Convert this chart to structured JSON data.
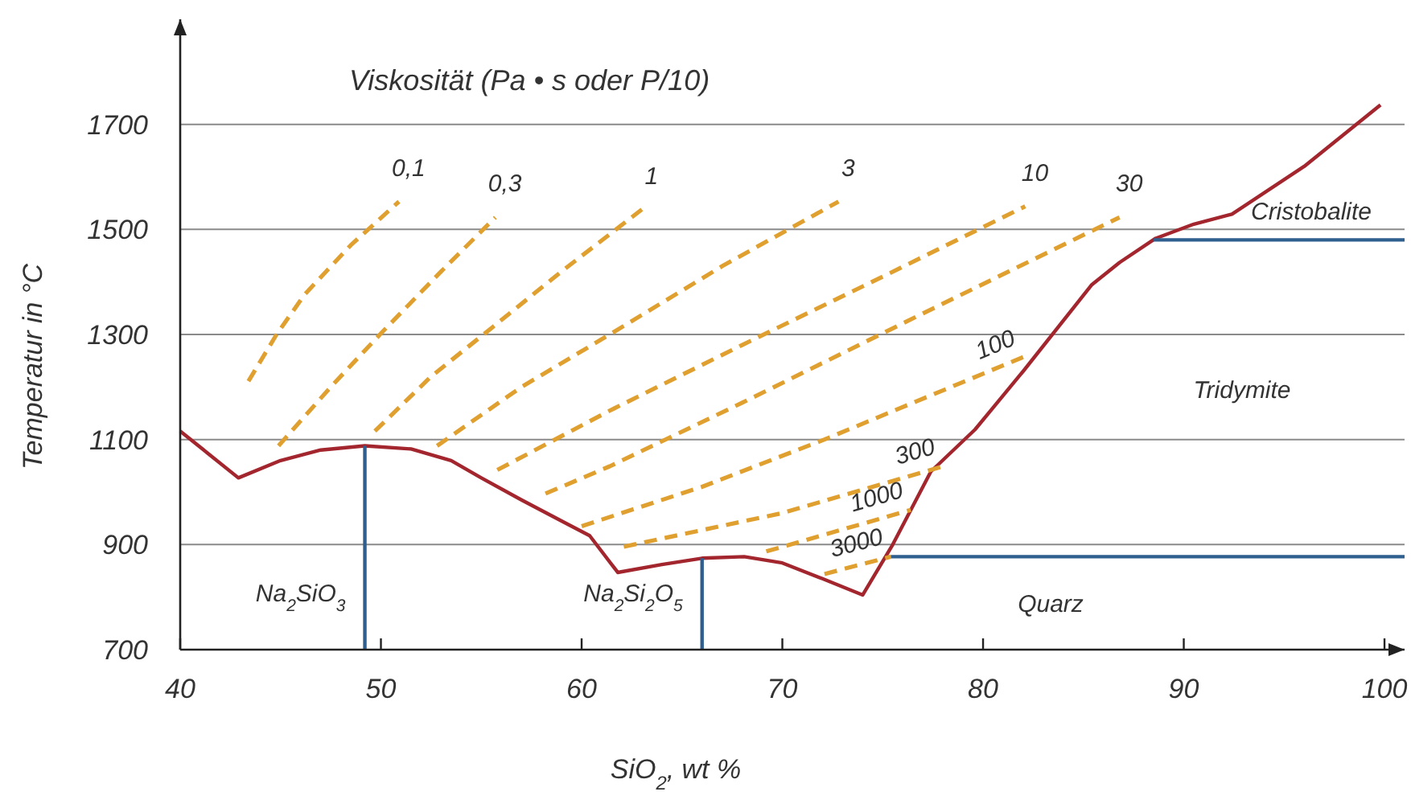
{
  "chart_data": {
    "type": "line",
    "title": "Viskosität (Pa • s oder P/10)",
    "xlabel": "SiO$_{2}$, wt %",
    "ylabel": "Temperatur in °C",
    "xlim": [
      40,
      101
    ],
    "ylim": [
      700,
      1900
    ],
    "xticks": [
      40,
      50,
      60,
      70,
      80,
      90,
      100
    ],
    "yticks": [
      700,
      900,
      1100,
      1300,
      1500,
      1700
    ],
    "grid": "y",
    "series": [
      {
        "type": "line",
        "color": "#a3262e",
        "line_style": "solid",
        "x": [
          40,
          42.9,
          45,
          47,
          49.2,
          51.5,
          53.5,
          55,
          57,
          59,
          60.4,
          61.8,
          64,
          66,
          68.1,
          70,
          72,
          74,
          75.5,
          77.4,
          79.6,
          82,
          85.4,
          86.8,
          88.6,
          90.5,
          92.4,
          96,
          99.8
        ],
        "values": [
          1116,
          1027,
          1060,
          1080,
          1088,
          1082,
          1060,
          1027,
          985,
          945,
          917,
          847,
          862,
          874,
          877,
          865,
          835,
          804,
          900,
          1039,
          1119,
          1230,
          1394,
          1437,
          1483,
          1510,
          1529,
          1620,
          1737
        ]
      },
      {
        "type": "line",
        "name": "Na$_{2}$SiO$_{3}$",
        "color": "#2f5f8f",
        "line_style": "solid",
        "x": [
          49.2,
          49.2
        ],
        "values": [
          700,
          1088
        ]
      },
      {
        "type": "line",
        "name": "Na$_{2}$Si$_{2}$O$_{5}$",
        "color": "#2f5f8f",
        "line_style": "solid",
        "x": [
          66,
          66
        ],
        "values": [
          700,
          874
        ]
      },
      {
        "type": "line",
        "color": "#2f5f8f",
        "line_style": "solid",
        "x": [
          75.4,
          101
        ],
        "values": [
          877,
          877
        ]
      },
      {
        "type": "line",
        "color": "#2f5f8f",
        "line_style": "solid",
        "x": [
          88.5,
          101
        ],
        "values": [
          1480,
          1480
        ]
      },
      {
        "type": "line",
        "name": "0,1",
        "color": "#e0a030",
        "line_style": "dashed",
        "x": [
          43.4,
          44.8,
          46.2,
          48.5,
          50.9
        ],
        "values": [
          1211,
          1300,
          1376,
          1470,
          1553
        ]
      },
      {
        "type": "line",
        "name": "0,3",
        "color": "#e0a030",
        "line_style": "dashed",
        "x": [
          44.9,
          47.5,
          50,
          53,
          55.7
        ],
        "values": [
          1088,
          1200,
          1302,
          1420,
          1523
        ]
      },
      {
        "type": "line",
        "name": "1",
        "color": "#e0a030",
        "line_style": "dashed",
        "x": [
          49.7,
          52.5,
          55.6,
          59,
          63
        ],
        "values": [
          1116,
          1220,
          1315,
          1420,
          1538
        ]
      },
      {
        "type": "line",
        "name": "3",
        "color": "#e0a030",
        "line_style": "dashed",
        "x": [
          52.8,
          57,
          61.4,
          67,
          72.8
        ],
        "values": [
          1088,
          1200,
          1300,
          1430,
          1553
        ]
      },
      {
        "type": "line",
        "name": "10",
        "color": "#e0a030",
        "line_style": "dashed",
        "x": [
          55.8,
          61.4,
          68,
          75,
          82.1
        ],
        "values": [
          1042,
          1155,
          1280,
          1410,
          1544
        ]
      },
      {
        "type": "line",
        "name": "30",
        "color": "#e0a030",
        "line_style": "dashed",
        "x": [
          58.2,
          61.4,
          68,
          77,
          86.8
        ],
        "values": [
          997,
          1049,
          1170,
          1340,
          1523
        ]
      },
      {
        "type": "line",
        "name": "100",
        "color": "#e0a030",
        "line_style": "dashed",
        "x": [
          60,
          66,
          72.1,
          82
        ],
        "values": [
          935,
          1010,
          1100,
          1257
        ]
      },
      {
        "type": "line",
        "name": "300",
        "color": "#e0a030",
        "line_style": "dashed",
        "x": [
          62.1,
          70,
          78
        ],
        "values": [
          896,
          960,
          1049
        ]
      },
      {
        "type": "line",
        "name": "1000",
        "color": "#e0a030",
        "line_style": "dashed",
        "x": [
          69.2,
          76.4
        ],
        "values": [
          887,
          966
        ]
      },
      {
        "type": "line",
        "name": "3000",
        "color": "#e0a030",
        "line_style": "dashed",
        "x": [
          72.1,
          75.4
        ],
        "values": [
          844,
          877
        ]
      }
    ],
    "annotations": [
      "Quarz",
      "Tridymite",
      "Cristobalite"
    ]
  }
}
